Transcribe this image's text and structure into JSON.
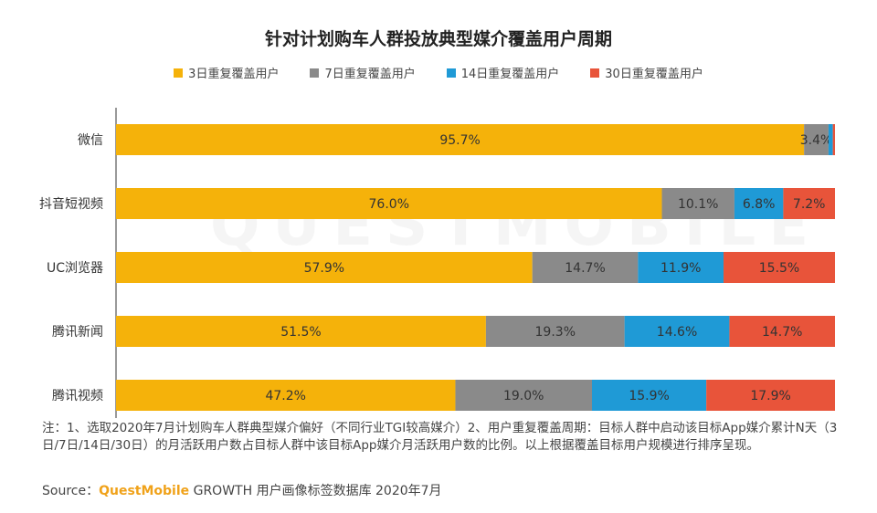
{
  "chart_data": {
    "type": "bar",
    "orientation": "horizontal",
    "stacked": true,
    "title": "针对计划购车人群投放典型媒介覆盖用户周期",
    "categories": [
      "微信",
      "抖音短视频",
      "UC浏览器",
      "腾讯新闻",
      "腾讯视频"
    ],
    "series": [
      {
        "name": "3日重复覆盖用户",
        "color": "#f5b20a",
        "values": [
          95.7,
          76.0,
          57.9,
          51.5,
          47.2
        ],
        "labels": [
          "95.7%",
          "76.0%",
          "57.9%",
          "51.5%",
          "47.2%"
        ]
      },
      {
        "name": "7日重复覆盖用户",
        "color": "#8a8a8a",
        "values": [
          3.4,
          10.1,
          14.7,
          19.3,
          19.0
        ],
        "labels": [
          "3.4%",
          "10.1%",
          "14.7%",
          "19.3%",
          "19.0%"
        ]
      },
      {
        "name": "14日重复覆盖用户",
        "color": "#1f9ad6",
        "values": [
          0.6,
          6.8,
          11.9,
          14.6,
          15.9
        ],
        "labels": [
          "",
          "6.8%",
          "11.9%",
          "14.6%",
          "15.9%"
        ]
      },
      {
        "name": "30日重复覆盖用户",
        "color": "#e8543a",
        "values": [
          0.3,
          7.2,
          15.5,
          14.7,
          17.9
        ],
        "labels": [
          "",
          "7.2%",
          "15.5%",
          "14.7%",
          "17.9%"
        ]
      }
    ],
    "xlim": [
      0,
      100
    ],
    "legend_position": "top"
  },
  "footnote": "注：1、选取2020年7月计划购车人群典型媒介偏好（不同行业TGI较高媒介）2、用户重复覆盖周期：目标人群中启动该目标App媒介累计N天（3日/7日/14日/30日）的月活跃用户数占目标人群中该目标App媒介月活跃用户数的比例。以上根据覆盖目标用户规模进行排序呈现。",
  "source": {
    "prefix": "Source：",
    "brand": "QuestMobile",
    "rest": " GROWTH 用户画像标签数据库 2020年7月"
  },
  "watermark": "QUESTMOBILE"
}
